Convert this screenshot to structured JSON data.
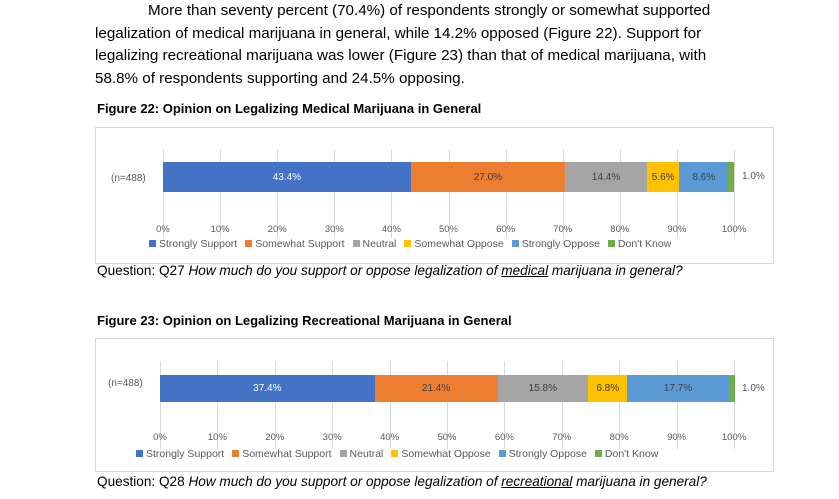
{
  "paragraph": {
    "line1": "More than seventy percent (70.4%) of respondents strongly or somewhat supported",
    "rest": "legalization of medical marijuana in general, while 14.2% opposed (Figure 22). Support for legalizing recreational marijuana was lower (Figure 23) than that of medical marijuana, with 58.8% of respondents supporting and 24.5% opposing."
  },
  "colors": {
    "Strongly Support": "#4472c4",
    "Somewhat Support": "#ed7d31",
    "Neutral": "#a5a5a5",
    "Somewhat Oppose": "#ffc000",
    "Strongly Oppose": "#5b9bd5",
    "Don't Know": "#70ad47"
  },
  "chart_data": [
    {
      "type": "bar",
      "stacked": true,
      "orientation": "horizontal",
      "title": "Figure 22: Opinion on Legalizing Medical Marijuana in General",
      "category": "(n=488)",
      "series": [
        {
          "name": "Strongly Support",
          "value": 43.4,
          "label": "43.4%"
        },
        {
          "name": "Somewhat Support",
          "value": 27.0,
          "label": "27.0%"
        },
        {
          "name": "Neutral",
          "value": 14.4,
          "label": "14.4%"
        },
        {
          "name": "Somewhat Oppose",
          "value": 5.6,
          "label": "5.6%"
        },
        {
          "name": "Strongly Oppose",
          "value": 8.6,
          "label": "8.6%"
        },
        {
          "name": "Don't Know",
          "value": 1.0,
          "label": "1.0%"
        }
      ],
      "xticks": [
        "0%",
        "10%",
        "20%",
        "30%",
        "40%",
        "50%",
        "60%",
        "70%",
        "80%",
        "90%",
        "100%"
      ],
      "xlim": [
        0,
        100
      ],
      "legend": "bottom",
      "question_prefix": "Question: Q27 ",
      "question_a": "How much do you support or oppose legalization of ",
      "question_u": "medical",
      "question_b": " marijuana in general?"
    },
    {
      "type": "bar",
      "stacked": true,
      "orientation": "horizontal",
      "title": "Figure 23: Opinion on Legalizing Recreational Marijuana in General",
      "category": "(n=488)",
      "series": [
        {
          "name": "Strongly Support",
          "value": 37.4,
          "label": "37.4%"
        },
        {
          "name": "Somewhat Support",
          "value": 21.4,
          "label": "21.4%"
        },
        {
          "name": "Neutral",
          "value": 15.8,
          "label": "15.8%"
        },
        {
          "name": "Somewhat Oppose",
          "value": 6.8,
          "label": "6.8%"
        },
        {
          "name": "Strongly Oppose",
          "value": 17.7,
          "label": "17.7%"
        },
        {
          "name": "Don't Know",
          "value": 1.0,
          "label": "1.0%"
        }
      ],
      "xticks": [
        "0%",
        "10%",
        "20%",
        "30%",
        "40%",
        "50%",
        "60%",
        "70%",
        "80%",
        "90%",
        "100%"
      ],
      "xlim": [
        0,
        100
      ],
      "legend": "bottom",
      "question_prefix": "Question: Q28 ",
      "question_a": "How much do you support or oppose legalization of ",
      "question_u": "recreational",
      "question_b": " marijuana in general?"
    }
  ]
}
